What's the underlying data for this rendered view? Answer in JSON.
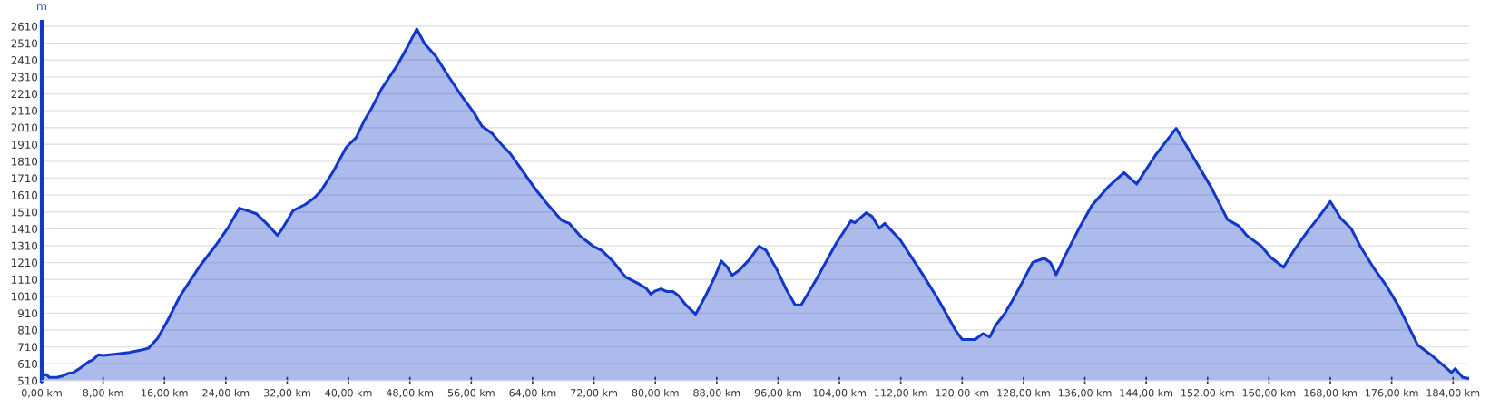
{
  "chart_data": {
    "type": "area",
    "ylabel": "m",
    "xlim": [
      0,
      186.1
    ],
    "ylim": [
      510,
      2650
    ],
    "xticks": [
      {
        "value": 0,
        "label": "0,00 km"
      },
      {
        "value": 8,
        "label": "8,00 km"
      },
      {
        "value": 16,
        "label": "16,00 km"
      },
      {
        "value": 24,
        "label": "24,00 km"
      },
      {
        "value": 32,
        "label": "32,00 km"
      },
      {
        "value": 40,
        "label": "40,00 km"
      },
      {
        "value": 48,
        "label": "48,00 km"
      },
      {
        "value": 56,
        "label": "56,00 km"
      },
      {
        "value": 64,
        "label": "64,00 km"
      },
      {
        "value": 72,
        "label": "72,00 km"
      },
      {
        "value": 80,
        "label": "80,00 km"
      },
      {
        "value": 88,
        "label": "88,00 km"
      },
      {
        "value": 96,
        "label": "96,00 km"
      },
      {
        "value": 104,
        "label": "104,00 km"
      },
      {
        "value": 112,
        "label": "112,00 km"
      },
      {
        "value": 120,
        "label": "120,00 km"
      },
      {
        "value": 128,
        "label": "128,00 km"
      },
      {
        "value": 136,
        "label": "136,00 km"
      },
      {
        "value": 144,
        "label": "144,00 km"
      },
      {
        "value": 152,
        "label": "152,00 km"
      },
      {
        "value": 160,
        "label": "160,00 km"
      },
      {
        "value": 168,
        "label": "168,00 km"
      },
      {
        "value": 176,
        "label": "176,00 km"
      },
      {
        "value": 184,
        "label": "184,00 km"
      }
    ],
    "yticks": [
      510,
      610,
      710,
      810,
      910,
      1010,
      1110,
      1210,
      1310,
      1410,
      1510,
      1610,
      1710,
      1810,
      1910,
      2010,
      2110,
      2210,
      2310,
      2410,
      2510,
      2610
    ],
    "grid": "y",
    "line_style": "solid",
    "marker": "none",
    "series": [
      {
        "color": "#1238c8",
        "x": [
          0,
          0.25,
          0.6,
          1.0,
          2.0,
          2.8,
          3.5,
          4.1,
          5.1,
          6.2,
          6.6,
          7.4,
          8.0,
          9.7,
          11.4,
          13.0,
          13.9,
          15.1,
          16.4,
          18.0,
          20.5,
          22.6,
          24.3,
          25.75,
          26.4,
          28.0,
          29.3,
          30.75,
          31.4,
          32.8,
          34.3,
          35.5,
          36.4,
          38.0,
          39.7,
          41.0,
          42.0,
          43.0,
          44.3,
          46.4,
          47.8,
          48.9,
          49.9,
          51.4,
          53.0,
          54.7,
          56.4,
          57.4,
          58.7,
          60.0,
          61.1,
          62.3,
          64.4,
          66.1,
          67.75,
          68.8,
          70.25,
          71.9,
          73.0,
          74.4,
          76.1,
          77.75,
          78.8,
          79.4,
          80.0,
          80.75,
          81.5,
          82.3,
          83.0,
          84.0,
          85.25,
          86.5,
          87.75,
          88.6,
          89.4,
          90.0,
          90.9,
          92.3,
          93.5,
          94.4,
          95.9,
          97.1,
          98.2,
          99.0,
          101.1,
          103.6,
          105.5,
          106.0,
          107.5,
          108.25,
          109.2,
          109.9,
          111.9,
          114.8,
          116.9,
          119.2,
          120.0,
          121.7,
          122.7,
          123.6,
          124.4,
          125.5,
          126.5,
          127.75,
          129.2,
          130.7,
          131.5,
          132.25,
          133.4,
          135.25,
          136.9,
          139.0,
          141.1,
          142.75,
          145.25,
          147.9,
          150.25,
          152.5,
          154.6,
          156.1,
          157.1,
          159.0,
          160.25,
          161.9,
          163.2,
          165.0,
          166.5,
          168.0,
          169.4,
          170.7,
          171.9,
          173.6,
          175.25,
          176.9,
          179.4,
          181.1,
          182.75,
          183.8,
          184.3,
          185.25,
          186.1
        ],
        "values": [
          520,
          543,
          547,
          529,
          529,
          539,
          554,
          558,
          587,
          625,
          631,
          664,
          660,
          668,
          677,
          692,
          702,
          760,
          865,
          1009,
          1182,
          1307,
          1417,
          1532,
          1524,
          1499,
          1442,
          1371,
          1413,
          1519,
          1553,
          1592,
          1634,
          1749,
          1893,
          1951,
          2047,
          2124,
          2239,
          2383,
          2498,
          2594,
          2508,
          2431,
          2316,
          2200,
          2095,
          2018,
          1976,
          1907,
          1855,
          1778,
          1643,
          1547,
          1461,
          1442,
          1365,
          1307,
          1282,
          1221,
          1125,
          1086,
          1057,
          1023,
          1042,
          1054,
          1038,
          1038,
          1015,
          958,
          904,
          1009,
          1125,
          1219,
          1182,
          1134,
          1163,
          1230,
          1307,
          1284,
          1163,
          1048,
          961,
          958,
          1119,
          1326,
          1457,
          1446,
          1505,
          1484,
          1413,
          1442,
          1346,
          1144,
          990,
          804,
          754,
          754,
          789,
          769,
          840,
          904,
          981,
          1086,
          1211,
          1236,
          1211,
          1138,
          1249,
          1413,
          1547,
          1657,
          1743,
          1676,
          1849,
          2005,
          1826,
          1653,
          1465,
          1426,
          1371,
          1307,
          1240,
          1182,
          1278,
          1394,
          1480,
          1572,
          1470,
          1413,
          1307,
          1182,
          1077,
          952,
          721,
          664,
          600,
          558,
          581,
          529,
          523
        ]
      }
    ]
  }
}
